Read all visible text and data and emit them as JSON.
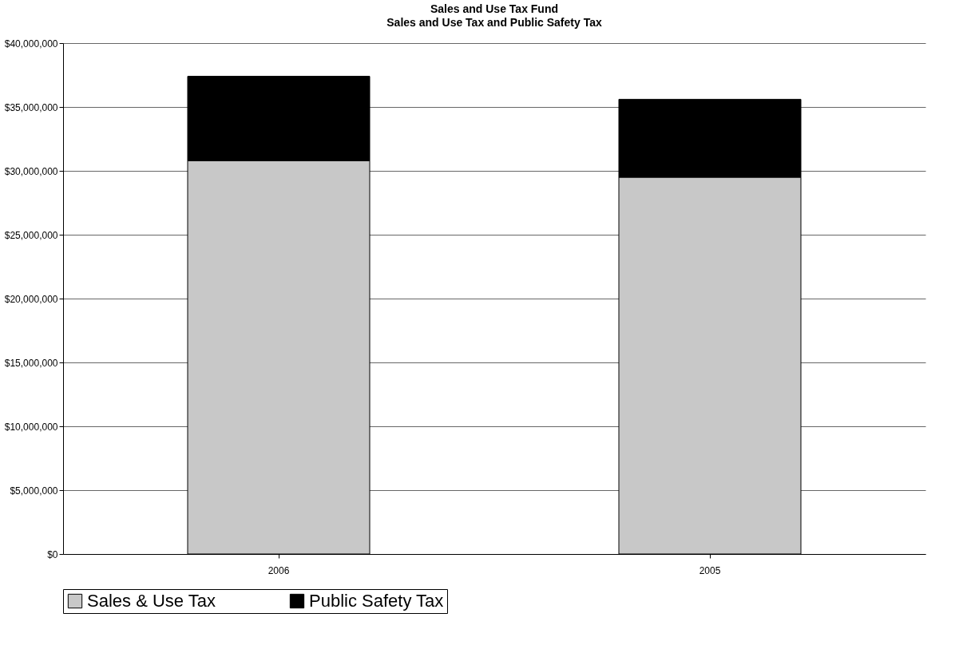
{
  "chart_data": {
    "type": "bar",
    "title": "Sales and Use Tax Fund",
    "subtitle": "Sales and Use Tax and Public Safety Tax",
    "categories": [
      "2006",
      "2005"
    ],
    "stacked": true,
    "series": [
      {
        "name": "Sales & Use Tax",
        "color": "#c8c8c8",
        "values": [
          30800000,
          29500000
        ]
      },
      {
        "name": "Public Safety Tax",
        "color": "#000000",
        "values": [
          6600000,
          6100000
        ]
      }
    ],
    "ylim": [
      0,
      40000000
    ],
    "yticks": [
      {
        "value": 0,
        "label": "$0"
      },
      {
        "value": 5000000,
        "label": "$5,000,000"
      },
      {
        "value": 10000000,
        "label": "$10,000,000"
      },
      {
        "value": 15000000,
        "label": "$15,000,000"
      },
      {
        "value": 20000000,
        "label": "$20,000,000"
      },
      {
        "value": 25000000,
        "label": "$25,000,000"
      },
      {
        "value": 30000000,
        "label": "$30,000,000"
      },
      {
        "value": 35000000,
        "label": "$35,000,000"
      },
      {
        "value": 40000000,
        "label": "$40,000,000"
      }
    ],
    "grid": "y",
    "legend": "bottom"
  }
}
